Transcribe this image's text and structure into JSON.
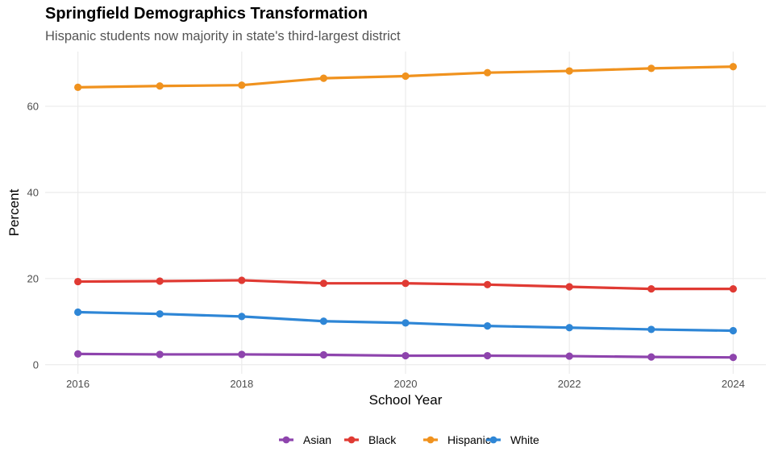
{
  "chart_data": {
    "type": "line",
    "title": "Springfield Demographics Transformation",
    "subtitle": "Hispanic students now majority in state's third-largest district",
    "xlabel": "School Year",
    "ylabel": "Percent",
    "x": [
      2016,
      2017,
      2018,
      2019,
      2020,
      2021,
      2022,
      2023,
      2024
    ],
    "xticks": [
      2016,
      2018,
      2020,
      2022,
      2024
    ],
    "xtick_labels": [
      "2016",
      "2018",
      "2020",
      "2022",
      "2024"
    ],
    "yticks": [
      0,
      20,
      40,
      60
    ],
    "ytick_labels": [
      "0",
      "20",
      "40",
      "60"
    ],
    "xlim": [
      2015.6,
      2024.4
    ],
    "ylim": [
      -2.1,
      72.7
    ],
    "grid": true,
    "legend_position": "bottom",
    "series": [
      {
        "name": "Asian",
        "color": "#8E44AD",
        "values": [
          2.5,
          2.4,
          2.4,
          2.3,
          2.1,
          2.1,
          2.0,
          1.8,
          1.7
        ]
      },
      {
        "name": "Black",
        "color": "#E03A33",
        "values": [
          19.3,
          19.4,
          19.6,
          18.9,
          18.9,
          18.6,
          18.1,
          17.6,
          17.6
        ]
      },
      {
        "name": "Hispanic",
        "color": "#F0921E",
        "values": [
          64.4,
          64.7,
          64.9,
          66.5,
          67.0,
          67.8,
          68.2,
          68.8,
          69.2
        ]
      },
      {
        "name": "White",
        "color": "#2E86D6",
        "values": [
          12.2,
          11.8,
          11.2,
          10.1,
          9.7,
          9.0,
          8.6,
          8.2,
          7.9
        ]
      }
    ]
  }
}
